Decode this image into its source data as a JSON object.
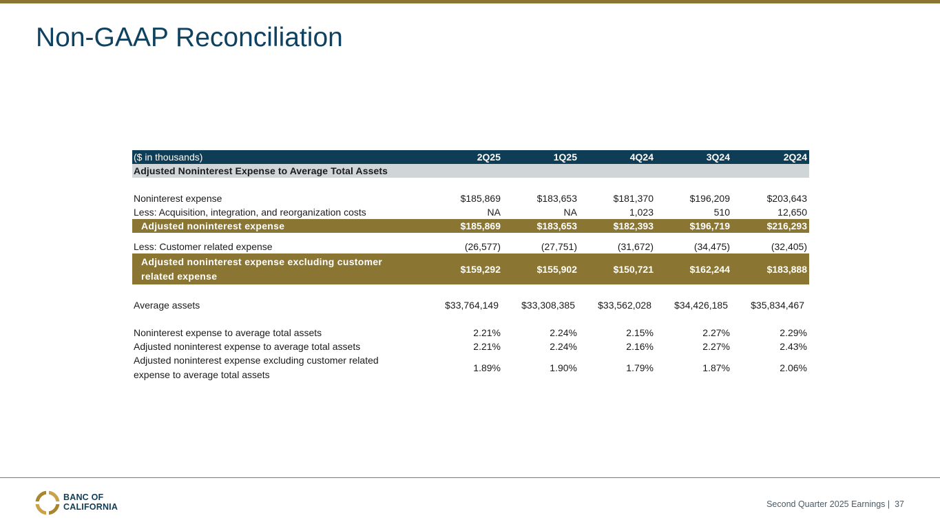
{
  "title": "Non-GAAP Reconciliation",
  "table": {
    "header_label": "($ in thousands)",
    "periods": [
      "2Q25",
      "1Q25",
      "4Q24",
      "3Q24",
      "2Q24"
    ],
    "section_title": "Adjusted Noninterest Expense to Average Total Assets",
    "rows": {
      "noninterest_expense": {
        "label": "Noninterest expense",
        "values": [
          "$185,869",
          "$183,653",
          "$181,370",
          "$196,209",
          "$203,643"
        ]
      },
      "acquisition_costs": {
        "label": "Less: Acquisition, integration, and reorganization costs",
        "values": [
          "NA",
          "NA",
          "1,023",
          "510",
          "12,650"
        ]
      },
      "adjusted_noninterest_expense": {
        "label": "Adjusted noninterest expense",
        "values": [
          "$185,869",
          "$183,653",
          "$182,393",
          "$196,719",
          "$216,293"
        ]
      },
      "customer_related_expense": {
        "label": "Less: Customer related expense",
        "values": [
          "(26,577)",
          "(27,751)",
          "(31,672)",
          "(34,475)",
          "(32,405)"
        ]
      },
      "adjusted_excluding_customer": {
        "label_line1": "Adjusted noninterest expense excluding customer",
        "label_line2": "related expense",
        "values": [
          "$159,292",
          "$155,902",
          "$150,721",
          "$162,244",
          "$183,888"
        ]
      },
      "average_assets": {
        "label": "Average assets",
        "values": [
          "$33,764,149",
          "$33,308,385",
          "$33,562,028",
          "$34,426,185",
          "$35,834,467"
        ]
      },
      "ratio_noninterest": {
        "label": "Noninterest expense to average total assets",
        "values": [
          "2.21%",
          "2.24%",
          "2.15%",
          "2.27%",
          "2.29%"
        ]
      },
      "ratio_adjusted": {
        "label": "Adjusted noninterest expense to average total assets",
        "values": [
          "2.21%",
          "2.24%",
          "2.16%",
          "2.27%",
          "2.43%"
        ]
      },
      "ratio_adjusted_excl_customer": {
        "label_line1": "Adjusted noninterest expense excluding customer related",
        "label_line2": "expense to average total assets",
        "values": [
          "1.89%",
          "1.90%",
          "1.79%",
          "1.87%",
          "2.06%"
        ]
      }
    }
  },
  "footer": {
    "logo_line1": "BANC OF",
    "logo_line2": "CALIFORNIA",
    "text": "Second Quarter 2025 Earnings |",
    "page_number": "37"
  },
  "colors": {
    "navy": "#0f3d56",
    "gold": "#8a7632",
    "section_gray": "#d0d5d8",
    "title_blue": "#0f4260"
  }
}
